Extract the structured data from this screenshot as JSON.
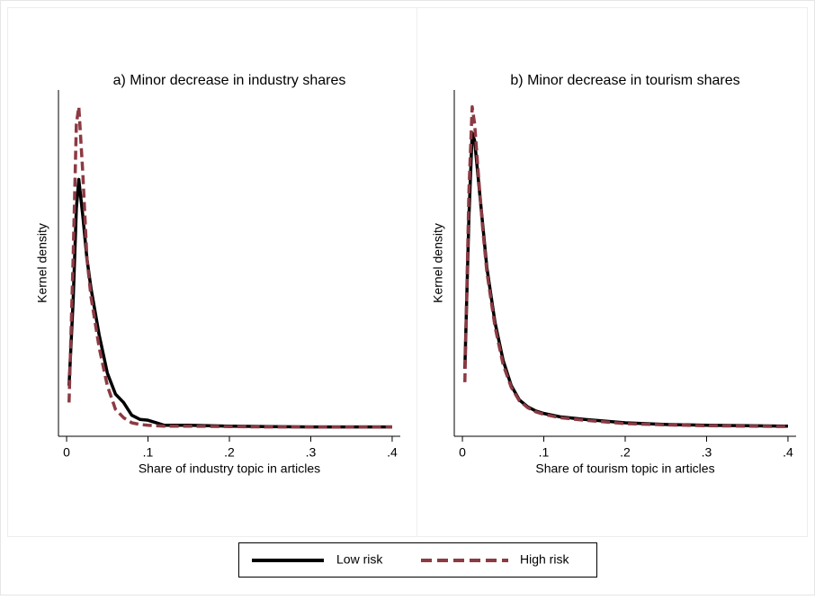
{
  "chart_data": [
    {
      "type": "line",
      "title": "a) Minor decrease in industry shares",
      "x_label": "Share of industry topic in articles",
      "y_label": "Kernel density",
      "x": [
        0.003,
        0.008,
        0.012,
        0.015,
        0.02,
        0.025,
        0.03,
        0.04,
        0.05,
        0.06,
        0.07,
        0.08,
        0.09,
        0.1,
        0.11,
        0.12,
        0.15,
        0.2,
        0.25,
        0.3,
        0.35,
        0.4
      ],
      "series": [
        {
          "name": "Low risk",
          "color": "#000000",
          "dash": "solid",
          "values": [
            5,
            15,
            26,
            29.4,
            25,
            20,
            16.5,
            11,
            6.5,
            4,
            3,
            1.5,
            1.0,
            0.9,
            0.6,
            0.3,
            0.3,
            0.2,
            0.15,
            0.1,
            0.1,
            0.1
          ]
        },
        {
          "name": "High risk",
          "color": "#8c3a43",
          "dash": "dashed",
          "values": [
            3,
            20,
            36,
            38,
            30,
            20,
            15.5,
            9.5,
            5,
            2.2,
            1.2,
            0.6,
            0.4,
            0.3,
            0.25,
            0.2,
            0.2,
            0.15,
            0.1,
            0.1,
            0.1,
            0.1
          ]
        }
      ],
      "xlim": [
        -0.01,
        0.41
      ],
      "ylim": [
        -1,
        40
      ],
      "xticks": [
        0,
        {
          "value": 0.1,
          "label": ".1"
        },
        {
          "value": 0.2,
          "label": ".2"
        },
        {
          "value": 0.3,
          "label": ".3"
        },
        {
          "value": 0.4,
          "label": ".4"
        }
      ]
    },
    {
      "type": "line",
      "title": "b) Minor decrease in tourism shares",
      "x_label": "Share of tourism topic in articles",
      "y_label": "Kernel density",
      "x": [
        0.003,
        0.008,
        0.012,
        0.015,
        0.02,
        0.025,
        0.03,
        0.04,
        0.05,
        0.06,
        0.07,
        0.08,
        0.09,
        0.1,
        0.12,
        0.15,
        0.2,
        0.25,
        0.3,
        0.35,
        0.4
      ],
      "series": [
        {
          "name": "Low risk",
          "color": "#000000",
          "dash": "solid",
          "values": [
            7,
            25,
            34.9,
            34,
            29,
            24,
            19,
            12.5,
            8,
            5,
            3.3,
            2.5,
            2,
            1.7,
            1.3,
            1.0,
            0.6,
            0.4,
            0.3,
            0.25,
            0.2
          ]
        },
        {
          "name": "High risk",
          "color": "#8c3a43",
          "dash": "dashed",
          "values": [
            5.4,
            28,
            38,
            36,
            29.5,
            23.5,
            18.5,
            12,
            7.5,
            4.8,
            3.2,
            2.4,
            1.9,
            1.6,
            1.2,
            0.9,
            0.5,
            0.35,
            0.25,
            0.2,
            0.15
          ]
        }
      ],
      "xlim": [
        -0.01,
        0.41
      ],
      "ylim": [
        -1,
        40
      ],
      "xticks": [
        0,
        {
          "value": 0.1,
          "label": ".1"
        },
        {
          "value": 0.2,
          "label": ".2"
        },
        {
          "value": 0.3,
          "label": ".3"
        },
        {
          "value": 0.4,
          "label": ".4"
        }
      ]
    }
  ]
}
